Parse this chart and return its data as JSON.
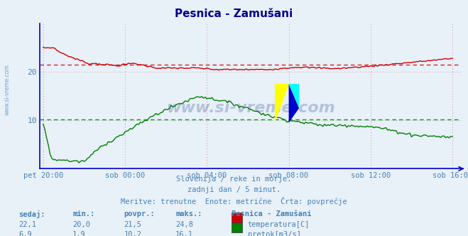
{
  "title": "Pesnica - Zamušani",
  "subtitle1": "Slovenija / reke in morje.",
  "subtitle2": "zadnji dan / 5 minut.",
  "subtitle3": "Meritve: trenutne  Enote: metrične  Črta: povprečje",
  "xlabel_ticks": [
    "pet 20:00",
    "sob 00:00",
    "sob 04:00",
    "sob 08:00",
    "sob 12:00",
    "sob 16:00"
  ],
  "bg_color": "#e8f0f8",
  "plot_bg_color": "#e8f0f8",
  "title_color": "#00008b",
  "text_color": "#4682b4",
  "temp_color": "#cc0000",
  "flow_color": "#008000",
  "avg_temp": 21.5,
  "avg_flow": 10.2,
  "n_points": 241,
  "ylim_min": 0,
  "ylim_max": 30,
  "yticks": [
    10,
    20
  ],
  "watermark": "www.si-vreme.com",
  "watermark_color": "#1a3a8c",
  "legend_label1": "temperatura[C]",
  "legend_label2": "pretok[m3/s]",
  "legend_color1": "#cc0000",
  "legend_color2": "#008000",
  "table_headers": [
    "sedaj:",
    "min.:",
    "povpr.:",
    "maks.:"
  ],
  "table_row1": [
    "22,1",
    "20,0",
    "21,5",
    "24,8"
  ],
  "table_row2": [
    "6,9",
    "1,9",
    "10,2",
    "16,1"
  ],
  "station_label": "Pesnica - Zamušani",
  "tick_positions": [
    0,
    48,
    96,
    144,
    192,
    240
  ],
  "border_color": "#0000cc",
  "grid_color": "#d09090",
  "grid_color_h_green": "#90b890"
}
